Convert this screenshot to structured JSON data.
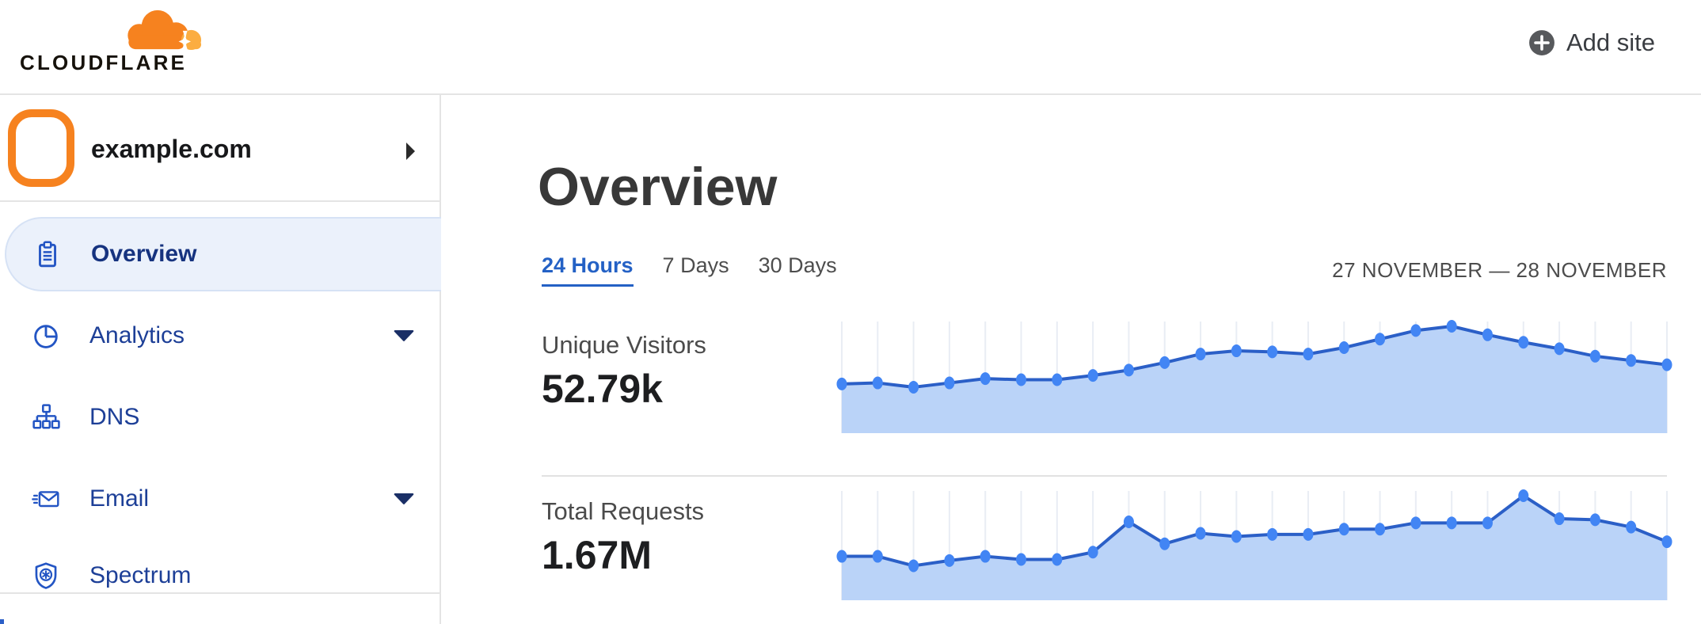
{
  "header": {
    "brand": "CLOUDFLARE",
    "add_site_label": "Add site"
  },
  "sidebar": {
    "site_name": "example.com",
    "items": [
      {
        "label": "Overview",
        "icon": "clipboard-icon",
        "selected": true,
        "expandable": false
      },
      {
        "label": "Analytics",
        "icon": "pie-chart-icon",
        "selected": false,
        "expandable": true
      },
      {
        "label": "DNS",
        "icon": "sitemap-icon",
        "selected": false,
        "expandable": false
      },
      {
        "label": "Email",
        "icon": "envelope-icon",
        "selected": false,
        "expandable": true
      },
      {
        "label": "Spectrum",
        "icon": "shield-icon",
        "selected": false,
        "expandable": false
      }
    ]
  },
  "main": {
    "title": "Overview",
    "tabs": [
      {
        "label": "24 Hours",
        "active": true
      },
      {
        "label": "7 Days",
        "active": false
      },
      {
        "label": "30 Days",
        "active": false
      }
    ],
    "date_range": "27 NOVEMBER — 28 NOVEMBER",
    "metrics": [
      {
        "label": "Unique Visitors",
        "value": "52.79k"
      },
      {
        "label": "Total Requests",
        "value": "1.67M"
      }
    ]
  },
  "colors": {
    "brand_orange": "#F6821F",
    "brand_orange_light": "#FBAD41",
    "nav_icon_blue": "#2355C4",
    "nav_text_navy": "#1D3F97",
    "selected_item_bg": "#EBF1FB",
    "active_tab_blue": "#2461C5",
    "highlight_ring_orange": "#F6821F",
    "back_arrow_blue": "#2E6BD9",
    "chart": {
      "line": "#2B5FC7",
      "dot": "#4285F4",
      "fill": "#BAD3F8",
      "grid": "#E9EDF4"
    }
  },
  "chart_data": [
    {
      "type": "area",
      "title": "Unique Visitors",
      "displayed_total": "52.79k",
      "time_range": "24 Hours",
      "x": [
        0,
        1,
        2,
        3,
        4,
        5,
        6,
        7,
        8,
        9,
        10,
        11,
        12,
        13,
        14,
        15,
        16,
        17,
        18,
        19,
        20,
        21,
        22,
        23
      ],
      "xlabel": "hour (axis unlabeled in UI)",
      "ylabel": "",
      "y_axis_unlabeled": true,
      "values_relative_pct": [
        46,
        47,
        43,
        47,
        51,
        50,
        50,
        54,
        59,
        66,
        74,
        77,
        76,
        74,
        80,
        88,
        96,
        100,
        92,
        85,
        79,
        72,
        68,
        64
      ],
      "grid": "vertical gridlines at each point",
      "legend_position": "none"
    },
    {
      "type": "area",
      "title": "Total Requests",
      "displayed_total": "1.67M",
      "time_range": "24 Hours",
      "x": [
        0,
        1,
        2,
        3,
        4,
        5,
        6,
        7,
        8,
        9,
        10,
        11,
        12,
        13,
        14,
        15,
        16,
        17,
        18,
        19,
        20,
        21,
        22,
        23
      ],
      "xlabel": "hour (axis unlabeled in UI)",
      "ylabel": "",
      "y_axis_unlabeled": true,
      "values_relative_pct": [
        42,
        42,
        33,
        38,
        42,
        39,
        39,
        46,
        75,
        54,
        64,
        61,
        63,
        63,
        68,
        68,
        74,
        74,
        74,
        100,
        78,
        77,
        70,
        56
      ],
      "grid": "vertical gridlines at each point",
      "legend_position": "none"
    }
  ]
}
